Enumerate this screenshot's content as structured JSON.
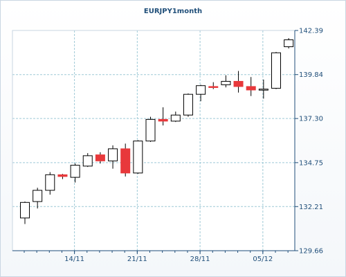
{
  "chart_data": {
    "type": "candlestick",
    "title": "EURJPY1month",
    "y_axis": {
      "min": 129.66,
      "max": 142.39,
      "position": "right",
      "ticks": [
        "142.39",
        "139.84",
        "137.30",
        "134.75",
        "132.21",
        "129.66"
      ]
    },
    "x_axis": {
      "tick_labels": [
        "14/11",
        "21/11",
        "28/11",
        "05/12"
      ]
    },
    "grid": true,
    "colors": {
      "up": "#ffffff",
      "down": "#e8383b",
      "outline": "#000000",
      "grid": "#9ec9d6",
      "axis_text": "#1f4e79"
    },
    "candles": [
      {
        "o": 131.55,
        "h": 132.5,
        "l": 131.2,
        "c": 132.45
      },
      {
        "o": 132.5,
        "h": 133.3,
        "l": 132.1,
        "c": 133.15
      },
      {
        "o": 133.15,
        "h": 134.2,
        "l": 132.9,
        "c": 134.05
      },
      {
        "o": 134.05,
        "h": 134.1,
        "l": 133.8,
        "c": 133.95
      },
      {
        "o": 133.9,
        "h": 134.7,
        "l": 133.6,
        "c": 134.6
      },
      {
        "o": 134.55,
        "h": 135.3,
        "l": 134.5,
        "c": 135.15
      },
      {
        "o": 135.2,
        "h": 135.35,
        "l": 134.7,
        "c": 134.85
      },
      {
        "o": 134.85,
        "h": 135.75,
        "l": 134.4,
        "c": 135.55
      },
      {
        "o": 135.55,
        "h": 135.85,
        "l": 133.95,
        "c": 134.15
      },
      {
        "o": 134.15,
        "h": 136.05,
        "l": 134.1,
        "c": 136.0
      },
      {
        "o": 136.0,
        "h": 137.4,
        "l": 135.95,
        "c": 137.25
      },
      {
        "o": 137.25,
        "h": 137.95,
        "l": 136.9,
        "c": 137.15
      },
      {
        "o": 137.15,
        "h": 137.7,
        "l": 137.1,
        "c": 137.5
      },
      {
        "o": 137.5,
        "h": 138.75,
        "l": 137.4,
        "c": 138.7
      },
      {
        "o": 138.7,
        "h": 139.25,
        "l": 138.3,
        "c": 139.2
      },
      {
        "o": 139.15,
        "h": 139.4,
        "l": 139.0,
        "c": 139.1
      },
      {
        "o": 139.25,
        "h": 139.8,
        "l": 139.1,
        "c": 139.45
      },
      {
        "o": 139.45,
        "h": 140.05,
        "l": 138.8,
        "c": 139.15
      },
      {
        "o": 139.15,
        "h": 139.7,
        "l": 138.6,
        "c": 138.95
      },
      {
        "o": 138.95,
        "h": 139.55,
        "l": 138.45,
        "c": 139.0
      },
      {
        "o": 139.05,
        "h": 141.15,
        "l": 139.0,
        "c": 141.1
      },
      {
        "o": 141.45,
        "h": 141.95,
        "l": 141.35,
        "c": 141.85
      }
    ]
  }
}
